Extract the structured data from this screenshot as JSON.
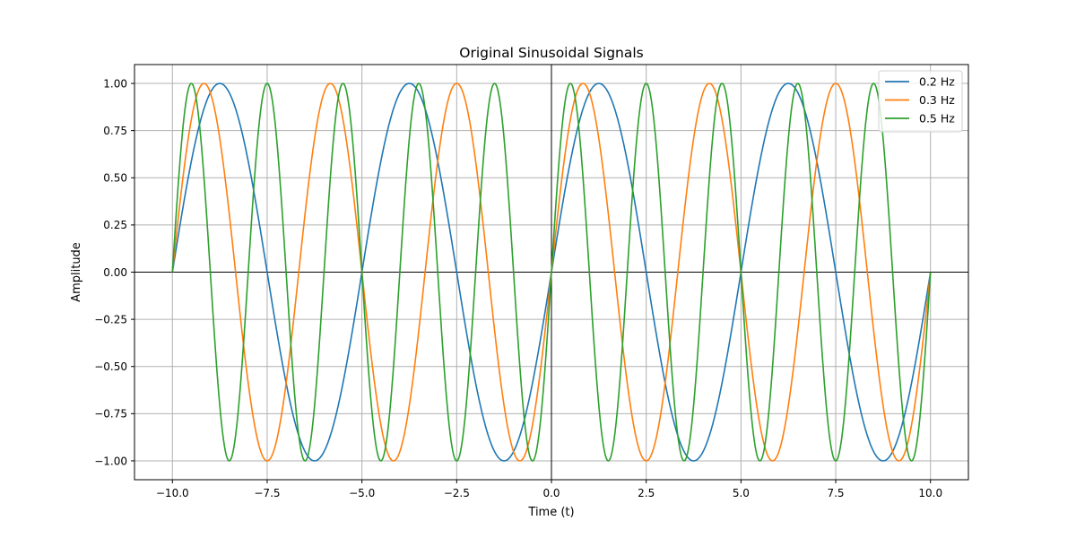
{
  "chart_data": {
    "type": "line",
    "title": "Original Sinusoidal Signals",
    "xlabel": "Time (t)",
    "ylabel": "Amplitude",
    "xlim": [
      -11,
      11
    ],
    "ylim": [
      -1.1,
      1.1
    ],
    "xticks": [
      -10,
      -7.5,
      -5,
      -2.5,
      0,
      2.5,
      5,
      7.5,
      10
    ],
    "xtick_labels": [
      "−10.0",
      "−7.5",
      "−5.0",
      "−2.5",
      "0.0",
      "2.5",
      "5.0",
      "7.5",
      "10.0"
    ],
    "yticks": [
      -1,
      -0.75,
      -0.5,
      -0.25,
      0,
      0.25,
      0.5,
      0.75,
      1
    ],
    "ytick_labels": [
      "−1.00",
      "−0.75",
      "−0.50",
      "−0.25",
      "0.00",
      "0.25",
      "0.50",
      "0.75",
      "1.00"
    ],
    "grid": true,
    "reference_lines": {
      "x": 0,
      "y": 0
    },
    "x_range": [
      -10,
      10
    ],
    "legend_position": "upper-right",
    "series": [
      {
        "name": "0.2 Hz",
        "function": "sin(2*pi*0.2*t)",
        "frequency": 0.2,
        "color": "#1f77b4"
      },
      {
        "name": "0.3 Hz",
        "function": "sin(2*pi*0.3*t)",
        "frequency": 0.3,
        "color": "#ff7f0e"
      },
      {
        "name": "0.5 Hz",
        "function": "sin(2*pi*0.5*t)",
        "frequency": 0.5,
        "color": "#2ca02c"
      }
    ]
  }
}
